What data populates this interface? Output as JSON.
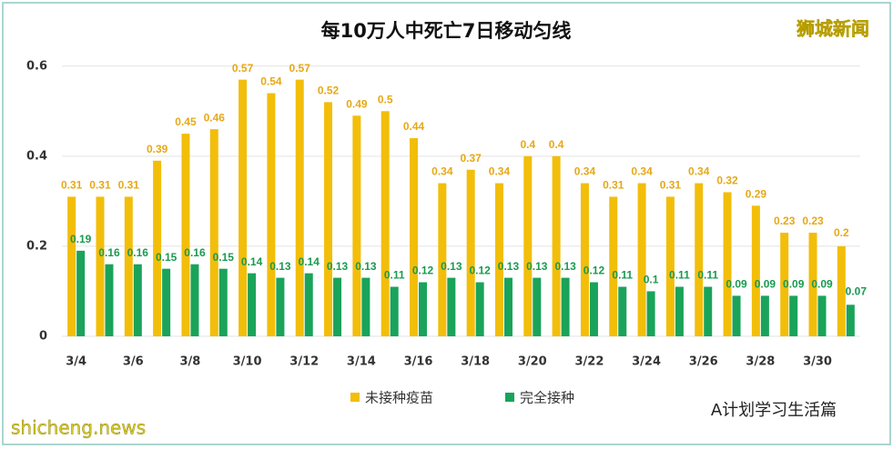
{
  "chart_data": {
    "type": "bar",
    "title": "每10万人中死亡7日移动匀线",
    "categories": [
      "3/4",
      null,
      "3/6",
      null,
      "3/8",
      null,
      "3/10",
      null,
      "3/12",
      null,
      "3/14",
      null,
      "3/16",
      null,
      "3/18",
      null,
      "3/20",
      null,
      "3/22",
      null,
      "3/24",
      null,
      "3/26",
      null,
      "3/28",
      null,
      "3/30",
      null
    ],
    "series": [
      {
        "name": "未接种疫苗",
        "color": "#f2be0a",
        "values": [
          0.31,
          0.31,
          0.31,
          0.39,
          0.45,
          0.46,
          0.57,
          0.54,
          0.57,
          0.52,
          0.49,
          0.5,
          0.44,
          0.34,
          0.37,
          0.34,
          0.4,
          0.4,
          0.34,
          0.31,
          0.34,
          0.31,
          0.34,
          0.32,
          0.29,
          0.23,
          0.23,
          0.2
        ]
      },
      {
        "name": "完全接种",
        "color": "#1aa35a",
        "values": [
          0.19,
          0.16,
          0.16,
          0.15,
          0.16,
          0.15,
          0.14,
          0.13,
          0.14,
          0.13,
          0.13,
          0.11,
          0.12,
          0.13,
          0.12,
          0.13,
          0.13,
          0.13,
          0.12,
          0.11,
          0.1,
          0.11,
          0.11,
          0.09,
          0.09,
          0.09,
          0.09,
          0.07
        ]
      }
    ],
    "ylim": [
      0,
      0.65
    ],
    "yticks": [
      0,
      0.2,
      0.4,
      0.6
    ],
    "grid": true,
    "legend": "bottom"
  },
  "brand": "狮城新闻",
  "site": "shicheng.news",
  "account": "A计划学习生活篇"
}
